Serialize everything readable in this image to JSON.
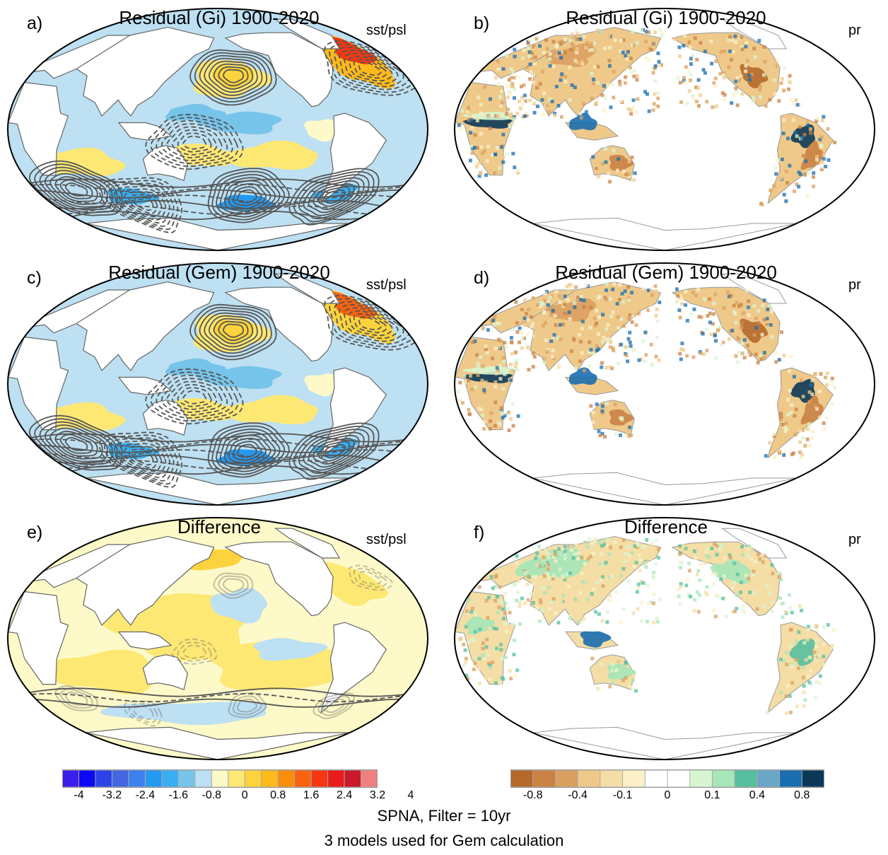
{
  "panels": [
    {
      "label": "a)",
      "title": "Residual (Gi) 1900-2020",
      "var": "sst/psl",
      "kind": "sst",
      "variant": "gi"
    },
    {
      "label": "b)",
      "title": "Residual (Gi) 1900-2020",
      "var": "pr",
      "kind": "pr",
      "variant": "gi"
    },
    {
      "label": "c)",
      "title": "Residual (Gem) 1900-2020",
      "var": "sst/psl",
      "kind": "sst",
      "variant": "gem"
    },
    {
      "label": "d)",
      "title": "Residual (Gem) 1900-2020",
      "var": "pr",
      "kind": "pr",
      "variant": "gem"
    },
    {
      "label": "e)",
      "title": "Difference",
      "var": "sst/psl",
      "kind": "sst",
      "variant": "diff"
    },
    {
      "label": "f)",
      "title": "Difference",
      "var": "pr",
      "kind": "pr",
      "variant": "diff"
    }
  ],
  "colorbar_sst": {
    "colors": [
      "#3c1eea",
      "#0a0af5",
      "#2c44e6",
      "#4466e0",
      "#3a80ef",
      "#2499f0",
      "#3aaef0",
      "#76c4ea",
      "#bde0f2",
      "#fdf9c8",
      "#fde874",
      "#fcd33c",
      "#fcba1c",
      "#f98e0a",
      "#f8620f",
      "#f33812",
      "#e81c1c",
      "#c81a2a",
      "#f08080"
    ],
    "tick_labels": [
      "-4",
      "-3.2",
      "-2.4",
      "-1.6",
      "-0.8",
      "0",
      "0.8",
      "1.6",
      "2.4",
      "3.2",
      "4"
    ]
  },
  "colorbar_pr": {
    "colors": [
      "#b4692a",
      "#c98244",
      "#daa062",
      "#efc98a",
      "#f4dea6",
      "#fbf0c8",
      "#ffffff",
      "#ffffff",
      "#d8f5d2",
      "#a6e6b8",
      "#56bfa0",
      "#6aa6c8",
      "#1a6eb0",
      "#0c3858"
    ],
    "tick_labels": [
      "-0.8",
      "-0.4",
      "-0.1",
      "0",
      "0.1",
      "0.4",
      "0.8"
    ]
  },
  "footer": {
    "line1": "SPNA, Filter = 10yr",
    "line2": "3 models used for Gem calculation"
  }
}
